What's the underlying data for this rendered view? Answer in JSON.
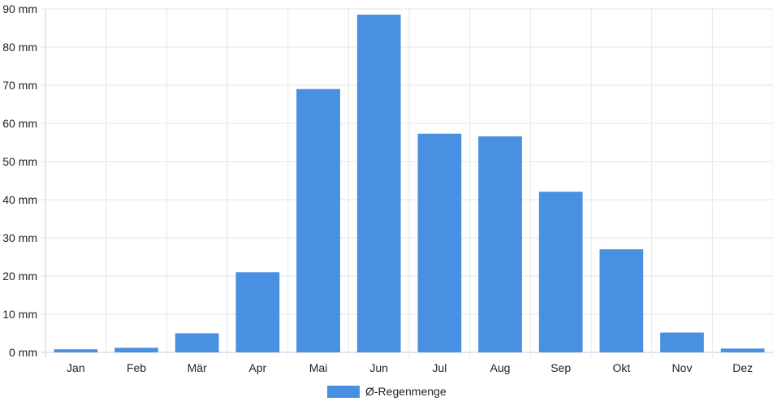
{
  "chart_data": {
    "type": "bar",
    "categories": [
      "Jan",
      "Feb",
      "Mär",
      "Apr",
      "Mai",
      "Jun",
      "Jul",
      "Aug",
      "Sep",
      "Okt",
      "Nov",
      "Dez"
    ],
    "series": [
      {
        "name": "Ø-Regenmenge",
        "color": "#4a90e2",
        "values": [
          0.8,
          1.2,
          5.0,
          21.0,
          69.0,
          88.5,
          57.3,
          56.6,
          42.1,
          27.0,
          5.2,
          1.0
        ]
      }
    ],
    "title": "",
    "xlabel": "",
    "ylabel": "",
    "ylim": [
      0,
      90
    ],
    "ytick_step": 10,
    "ytick_suffix": " mm",
    "grid": true,
    "legend_position": "bottom-center",
    "colors": {
      "grid": "#e6e6e6",
      "axis": "#cccccc",
      "text": "#222222"
    }
  }
}
